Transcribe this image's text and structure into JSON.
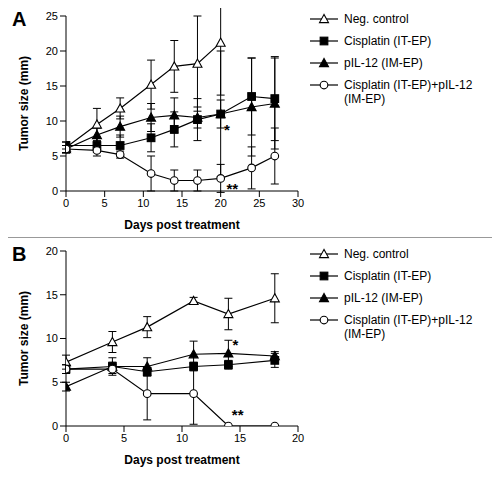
{
  "chart_data": [
    {
      "type": "line",
      "title": "A",
      "x_label": "Days post treatment",
      "y_label": "Tumor size (mm)",
      "xlim": [
        0,
        30
      ],
      "xticks": [
        0,
        5,
        10,
        15,
        20,
        25,
        30
      ],
      "ylim": [
        0,
        25
      ],
      "yticks": [
        0,
        5,
        10,
        15,
        20,
        25
      ],
      "legend": "right",
      "series": [
        {
          "name": "Neg. control",
          "color": "#000000",
          "marker": "triangle-open",
          "x": [
            0,
            4,
            7,
            11,
            14,
            17,
            20
          ],
          "values": [
            6.2,
            9.5,
            11.8,
            15.2,
            17.8,
            18.2,
            21.2
          ],
          "errors": [
            0.8,
            2.3,
            1.5,
            3.5,
            3.7,
            6.8,
            7.5
          ]
        },
        {
          "name": "Cisplatin (IT-EP)",
          "color": "#000000",
          "marker": "square",
          "x": [
            0,
            4,
            7,
            11,
            14,
            17,
            20,
            24,
            27
          ],
          "values": [
            6.5,
            6.5,
            6.5,
            7.6,
            8.8,
            10.2,
            11,
            13.5,
            13.2
          ],
          "errors": [
            0.5,
            1,
            1.5,
            2,
            2.5,
            3,
            9,
            5.5,
            6
          ]
        },
        {
          "name": "pIL-12 (IM-EP)",
          "color": "#000000",
          "marker": "triangle",
          "x": [
            0,
            4,
            7,
            11,
            14,
            17,
            20,
            24,
            27
          ],
          "values": [
            6,
            8,
            9.2,
            10.5,
            10.8,
            10.5,
            11,
            12,
            12.5
          ],
          "errors": [
            0.5,
            1,
            1.5,
            2,
            2.5,
            1.5,
            2,
            7,
            6.5
          ]
        },
        {
          "name": "Cisplatin (IT-EP)+pIL-12 (IM-EP)",
          "color": "#000000",
          "marker": "circle-open",
          "x": [
            0,
            4,
            7,
            11,
            14,
            17,
            20,
            24,
            27
          ],
          "values": [
            6,
            5.8,
            5.2,
            2.5,
            1.5,
            1.5,
            1.8,
            3.3,
            5
          ],
          "errors": [
            0.5,
            0.8,
            0.5,
            2.5,
            1.5,
            1.5,
            2,
            3,
            4
          ]
        }
      ],
      "annotations": [
        {
          "text": "*",
          "x": 20.8,
          "y": 8.7
        },
        {
          "text": "**",
          "x": 21.5,
          "y": 0.3
        }
      ]
    },
    {
      "type": "line",
      "title": "B",
      "x_label": "Days post treatment",
      "y_label": "Tumor size (mm)",
      "xlim": [
        0,
        20
      ],
      "xticks": [
        0,
        5,
        10,
        15,
        20
      ],
      "ylim": [
        0,
        20
      ],
      "yticks": [
        0,
        5,
        10,
        15,
        20
      ],
      "legend": "right",
      "series": [
        {
          "name": "Neg. control",
          "color": "#000000",
          "marker": "triangle-open",
          "x": [
            0,
            4,
            7,
            11,
            14,
            18
          ],
          "values": [
            7.3,
            9.6,
            11.3,
            14.3,
            12.8,
            14.6
          ],
          "errors": [
            0.8,
            1.2,
            1.2,
            0.4,
            1.8,
            2.8
          ]
        },
        {
          "name": "Cisplatin (IT-EP)",
          "color": "#000000",
          "marker": "square",
          "x": [
            0,
            4,
            7,
            11,
            14,
            18
          ],
          "values": [
            6.5,
            6.8,
            6.2,
            6.8,
            7,
            7.5
          ],
          "errors": [
            0.5,
            0.5,
            0.5,
            0.5,
            0.5,
            0.8
          ]
        },
        {
          "name": "pIL-12 (IM-EP)",
          "color": "#000000",
          "marker": "triangle",
          "x": [
            0,
            4,
            7,
            11,
            14,
            18
          ],
          "values": [
            4.5,
            6.8,
            6.8,
            8.2,
            8.3,
            8
          ],
          "errors": [
            0.5,
            1,
            1,
            1.5,
            1.5,
            0.5
          ]
        },
        {
          "name": "Cisplatin (IT-EP)+pIL-12 (IM-EP)",
          "color": "#000000",
          "marker": "circle-open",
          "x": [
            0,
            4,
            7,
            11,
            14,
            18
          ],
          "values": [
            6.5,
            6.5,
            3.7,
            3.7,
            0,
            0
          ],
          "errors": [
            0.5,
            0.5,
            3,
            3.5,
            0,
            0
          ]
        }
      ],
      "annotations": [
        {
          "text": "*",
          "x": 14.6,
          "y": 9.3
        },
        {
          "text": "**",
          "x": 14.8,
          "y": 1.3
        }
      ]
    }
  ]
}
